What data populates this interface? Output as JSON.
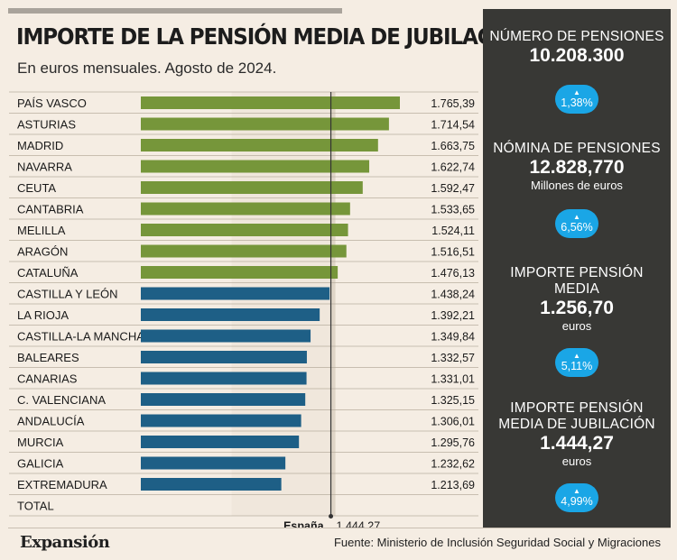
{
  "title": "IMPORTE DE LA PENSIÓN MEDIA DE JUBILACIÓN",
  "subtitle": "En euros mensuales. Agosto de 2024.",
  "chart_data": {
    "type": "bar",
    "orientation": "horizontal",
    "categories": [
      "PAÍS VASCO",
      "ASTURIAS",
      "MADRID",
      "NAVARRA",
      "CEUTA",
      "CANTABRIA",
      "MELILLA",
      "ARAGÓN",
      "CATALUÑA",
      "CASTILLA Y LEÓN",
      "LA RIOJA",
      "CASTILLA-LA MANCHA",
      "BALEARES",
      "CANARIAS",
      "C. VALENCIANA",
      "ANDALUCÍA",
      "MURCIA",
      "GALICIA",
      "EXTREMADURA"
    ],
    "values": [
      1765.39,
      1714.54,
      1663.75,
      1622.74,
      1592.47,
      1533.65,
      1524.11,
      1516.51,
      1476.13,
      1438.24,
      1392.21,
      1349.84,
      1332.57,
      1331.01,
      1325.15,
      1306.01,
      1295.76,
      1232.62,
      1213.69
    ],
    "value_labels": [
      "1.765,39",
      "1.714,54",
      "1.663,75",
      "1.622,74",
      "1.592,47",
      "1.533,65",
      "1.524,11",
      "1.516,51",
      "1.476,13",
      "1.438,24",
      "1.392,21",
      "1.349,84",
      "1.332,57",
      "1.331,01",
      "1.325,15",
      "1.306,01",
      "1.295,76",
      "1.232,62",
      "1.213,69"
    ],
    "total_label": "TOTAL",
    "reference": {
      "name": "España",
      "value": 1444.27,
      "label": "1.444,27"
    },
    "colors": {
      "above": "#76963a",
      "below": "#1e5f86",
      "reference_band": "#d6cabb"
    },
    "xlim": [
      0,
      1800
    ]
  },
  "sidebar": {
    "items": [
      {
        "label": "NÚMERO DE PENSIONES",
        "value": "10.208.300",
        "unit": "",
        "change": "1,38%"
      },
      {
        "label": "NÓMINA DE PENSIONES",
        "value": "12.828,770",
        "unit": "Millones de euros",
        "change": "6,56%"
      },
      {
        "label_lines": [
          "IMPORTE PENSIÓN",
          "MEDIA"
        ],
        "value": "1.256,70",
        "unit": "euros",
        "change": "5,11%"
      },
      {
        "label_lines": [
          "IMPORTE PENSIÓN",
          "MEDIA DE JUBILACIÓN"
        ],
        "value": "1.444,27",
        "unit": "euros",
        "change": "4,99%"
      }
    ],
    "badge_icon": "up-triangle-icon",
    "badge_color": "#1aa6e6"
  },
  "footer": {
    "brand": "Expansión",
    "source": "Fuente: Ministerio de Inclusión Seguridad Social y Migraciones"
  }
}
